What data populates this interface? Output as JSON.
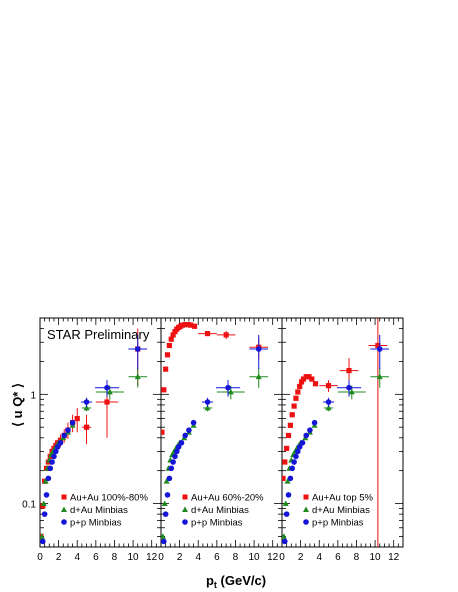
{
  "figure": {
    "prelim_label": "STAR Preliminary",
    "y_axis_label": "⟨ u Q* ⟩",
    "x_axis_label_main": "p",
    "x_axis_label_sub": "t",
    "x_axis_label_rest": " (GeV/c)"
  },
  "colors": {
    "auau": "#ee1111",
    "dau": "#1f8a1f",
    "pp": "#1515d8",
    "axis": "#000000"
  },
  "chart_data": [
    {
      "type": "scatter",
      "panel": "left",
      "xlabel": "p_t (GeV/c)",
      "ylabel": "⟨ u Q* ⟩",
      "xlim": [
        0,
        13
      ],
      "ylim": [
        0.04,
        5
      ],
      "log_y": true,
      "x_ticks": [
        0,
        2,
        4,
        6,
        8,
        10,
        12
      ],
      "y_ticks": [
        {
          "v": 0.1,
          "label": "0.1"
        },
        {
          "v": 1,
          "label": "1"
        }
      ],
      "legend": "bottom-left",
      "series": [
        {
          "name": "Au+Au 100%-80%",
          "key": "auau",
          "marker": "square",
          "points": [
            [
              0.1,
              0.05
            ],
            [
              0.3,
              0.095
            ],
            [
              0.5,
              0.16
            ],
            [
              0.7,
              0.21
            ],
            [
              0.9,
              0.24
            ],
            [
              1.1,
              0.27
            ],
            [
              1.3,
              0.3
            ],
            [
              1.5,
              0.32
            ],
            [
              1.7,
              0.34
            ],
            [
              1.9,
              0.36
            ],
            [
              2.2,
              0.38
            ],
            [
              2.6,
              0.42
            ],
            [
              3.0,
              0.47
            ],
            [
              3.5,
              0.55
            ],
            [
              4.0,
              0.6
            ],
            [
              5.0,
              0.5
            ],
            [
              7.2,
              0.85
            ],
            [
              10.5,
              2.6
            ]
          ],
          "xerr": [
            0,
            0,
            0,
            0,
            0,
            0,
            0,
            0,
            0,
            0,
            0,
            0,
            0,
            0,
            0,
            0.5,
            1.2,
            1
          ],
          "yerr": [
            0,
            0,
            0,
            0,
            0,
            0,
            0,
            0,
            0,
            0,
            0.05,
            0.06,
            0.08,
            0.1,
            0.15,
            0.15,
            0.45,
            1.4
          ]
        },
        {
          "name": "d+Au Minbias",
          "key": "dau",
          "marker": "triangle",
          "points": [
            [
              0.2,
              0.05
            ],
            [
              0.4,
              0.1
            ],
            [
              0.6,
              0.16
            ],
            [
              0.8,
              0.21
            ],
            [
              1.0,
              0.25
            ],
            [
              1.2,
              0.28
            ],
            [
              1.4,
              0.3
            ],
            [
              1.6,
              0.32
            ],
            [
              1.8,
              0.34
            ],
            [
              2.0,
              0.36
            ],
            [
              2.5,
              0.4
            ],
            [
              3.0,
              0.45
            ],
            [
              3.5,
              0.52
            ],
            [
              5.0,
              0.75
            ],
            [
              7.5,
              1.05
            ],
            [
              10.5,
              1.45
            ]
          ],
          "xerr": [
            0,
            0,
            0,
            0,
            0,
            0,
            0,
            0,
            0,
            0,
            0,
            0,
            0,
            0.5,
            1.5,
            1
          ],
          "yerr": [
            0,
            0,
            0,
            0,
            0,
            0,
            0,
            0,
            0,
            0,
            0,
            0,
            0,
            0.05,
            0.15,
            0.3
          ]
        },
        {
          "name": "p+p Minbias",
          "key": "pp",
          "marker": "circle",
          "points": [
            [
              0.3,
              0.045
            ],
            [
              0.5,
              0.08
            ],
            [
              0.7,
              0.12
            ],
            [
              0.9,
              0.17
            ],
            [
              1.1,
              0.21
            ],
            [
              1.3,
              0.24
            ],
            [
              1.5,
              0.27
            ],
            [
              1.7,
              0.3
            ],
            [
              1.9,
              0.33
            ],
            [
              2.2,
              0.36
            ],
            [
              2.6,
              0.42
            ],
            [
              3.0,
              0.47
            ],
            [
              3.5,
              0.55
            ],
            [
              5.0,
              0.85
            ],
            [
              7.2,
              1.15
            ],
            [
              10.5,
              2.6
            ]
          ],
          "xerr": [
            0,
            0,
            0,
            0,
            0,
            0,
            0,
            0,
            0,
            0,
            0,
            0,
            0,
            0.6,
            1.3,
            1
          ],
          "yerr": [
            0,
            0,
            0,
            0,
            0,
            0,
            0,
            0,
            0,
            0,
            0,
            0,
            0,
            0.08,
            0.2,
            0.9
          ]
        }
      ]
    },
    {
      "type": "scatter",
      "panel": "middle",
      "xlabel": "p_t (GeV/c)",
      "ylabel": "⟨ u Q* ⟩",
      "xlim": [
        0,
        13
      ],
      "ylim": [
        0.04,
        5
      ],
      "log_y": true,
      "x_ticks": [
        0,
        2,
        4,
        6,
        8,
        10,
        12
      ],
      "legend": "bottom-left",
      "series": [
        {
          "name": "Au+Au 60%-20%",
          "key": "auau",
          "marker": "square",
          "points": [
            [
              0.1,
              0.45
            ],
            [
              0.3,
              1.1
            ],
            [
              0.5,
              1.7
            ],
            [
              0.7,
              2.3
            ],
            [
              0.9,
              2.8
            ],
            [
              1.1,
              3.2
            ],
            [
              1.3,
              3.5
            ],
            [
              1.5,
              3.75
            ],
            [
              1.7,
              3.95
            ],
            [
              1.9,
              4.1
            ],
            [
              2.1,
              4.2
            ],
            [
              2.3,
              4.3
            ],
            [
              2.6,
              4.35
            ],
            [
              2.9,
              4.35
            ],
            [
              3.2,
              4.3
            ],
            [
              3.6,
              4.2
            ],
            [
              5.0,
              3.6
            ],
            [
              7.0,
              3.5
            ],
            [
              10.5,
              2.7
            ]
          ],
          "xerr": [
            0,
            0,
            0,
            0,
            0,
            0,
            0,
            0,
            0,
            0,
            0,
            0,
            0,
            0,
            0,
            0,
            1,
            1,
            1
          ],
          "yerr": [
            0,
            0,
            0,
            0,
            0,
            0,
            0,
            0,
            0,
            0,
            0,
            0,
            0,
            0,
            0,
            0,
            0,
            0.3,
            0.6
          ]
        },
        {
          "name": "d+Au Minbias",
          "key": "dau",
          "marker": "triangle",
          "points": [
            [
              0.2,
              0.05
            ],
            [
              0.4,
              0.1
            ],
            [
              0.6,
              0.16
            ],
            [
              0.8,
              0.21
            ],
            [
              1.0,
              0.25
            ],
            [
              1.2,
              0.28
            ],
            [
              1.4,
              0.3
            ],
            [
              1.6,
              0.32
            ],
            [
              1.8,
              0.34
            ],
            [
              2.0,
              0.36
            ],
            [
              2.5,
              0.4
            ],
            [
              3.0,
              0.45
            ],
            [
              3.5,
              0.52
            ],
            [
              5.0,
              0.75
            ],
            [
              7.5,
              1.05
            ],
            [
              10.5,
              1.45
            ]
          ],
          "xerr": [
            0,
            0,
            0,
            0,
            0,
            0,
            0,
            0,
            0,
            0,
            0,
            0,
            0,
            0.5,
            1.5,
            1
          ],
          "yerr": [
            0,
            0,
            0,
            0,
            0,
            0,
            0,
            0,
            0,
            0,
            0,
            0,
            0,
            0.05,
            0.15,
            0.3
          ]
        },
        {
          "name": "p+p Minbias",
          "key": "pp",
          "marker": "circle",
          "points": [
            [
              0.3,
              0.045
            ],
            [
              0.5,
              0.08
            ],
            [
              0.7,
              0.12
            ],
            [
              0.9,
              0.17
            ],
            [
              1.1,
              0.21
            ],
            [
              1.3,
              0.24
            ],
            [
              1.5,
              0.27
            ],
            [
              1.7,
              0.3
            ],
            [
              1.9,
              0.33
            ],
            [
              2.2,
              0.36
            ],
            [
              2.6,
              0.42
            ],
            [
              3.0,
              0.47
            ],
            [
              3.5,
              0.55
            ],
            [
              5.0,
              0.85
            ],
            [
              7.2,
              1.15
            ],
            [
              10.5,
              2.6
            ]
          ],
          "xerr": [
            0,
            0,
            0,
            0,
            0,
            0,
            0,
            0,
            0,
            0,
            0,
            0,
            0,
            0.6,
            1.3,
            1
          ],
          "yerr": [
            0,
            0,
            0,
            0,
            0,
            0,
            0,
            0,
            0,
            0,
            0,
            0,
            0,
            0.08,
            0.2,
            0.9
          ]
        }
      ]
    },
    {
      "type": "scatter",
      "panel": "right",
      "xlabel": "p_t (GeV/c)",
      "ylabel": "⟨ u Q* ⟩",
      "xlim": [
        0,
        13
      ],
      "ylim": [
        0.04,
        5
      ],
      "log_y": true,
      "x_ticks": [
        0,
        2,
        4,
        6,
        8,
        10,
        12
      ],
      "legend": "bottom-left",
      "series": [
        {
          "name": "Au+Au top 5%",
          "key": "auau",
          "marker": "square",
          "points": [
            [
              0.1,
              0.17
            ],
            [
              0.3,
              0.24
            ],
            [
              0.5,
              0.32
            ],
            [
              0.7,
              0.42
            ],
            [
              0.9,
              0.52
            ],
            [
              1.1,
              0.65
            ],
            [
              1.3,
              0.78
            ],
            [
              1.5,
              0.92
            ],
            [
              1.7,
              1.05
            ],
            [
              1.9,
              1.18
            ],
            [
              2.1,
              1.3
            ],
            [
              2.3,
              1.38
            ],
            [
              2.6,
              1.45
            ],
            [
              2.9,
              1.45
            ],
            [
              3.2,
              1.38
            ],
            [
              3.6,
              1.25
            ],
            [
              5.0,
              1.2
            ],
            [
              7.2,
              1.65
            ],
            [
              10.3,
              2.8
            ]
          ],
          "xerr": [
            0,
            0,
            0,
            0,
            0,
            0,
            0,
            0,
            0,
            0,
            0,
            0,
            0,
            0,
            0,
            0,
            1,
            1,
            1
          ],
          "yerr": [
            0,
            0,
            0,
            0,
            0,
            0,
            0,
            0,
            0,
            0,
            0,
            0,
            0,
            0,
            0,
            0,
            0.15,
            0.5,
            3
          ]
        },
        {
          "name": "d+Au Minbias",
          "key": "dau",
          "marker": "triangle",
          "points": [
            [
              0.2,
              0.05
            ],
            [
              0.4,
              0.1
            ],
            [
              0.6,
              0.16
            ],
            [
              0.8,
              0.21
            ],
            [
              1.0,
              0.25
            ],
            [
              1.2,
              0.28
            ],
            [
              1.4,
              0.3
            ],
            [
              1.6,
              0.32
            ],
            [
              1.8,
              0.34
            ],
            [
              2.0,
              0.36
            ],
            [
              2.5,
              0.4
            ],
            [
              3.0,
              0.45
            ],
            [
              3.5,
              0.52
            ],
            [
              5.0,
              0.75
            ],
            [
              7.5,
              1.05
            ],
            [
              10.5,
              1.45
            ]
          ],
          "xerr": [
            0,
            0,
            0,
            0,
            0,
            0,
            0,
            0,
            0,
            0,
            0,
            0,
            0,
            0.5,
            1.5,
            1
          ],
          "yerr": [
            0,
            0,
            0,
            0,
            0,
            0,
            0,
            0,
            0,
            0,
            0,
            0,
            0,
            0.05,
            0.15,
            0.3
          ]
        },
        {
          "name": "p+p Minbias",
          "key": "pp",
          "marker": "circle",
          "points": [
            [
              0.3,
              0.045
            ],
            [
              0.5,
              0.08
            ],
            [
              0.7,
              0.12
            ],
            [
              0.9,
              0.17
            ],
            [
              1.1,
              0.21
            ],
            [
              1.3,
              0.24
            ],
            [
              1.5,
              0.27
            ],
            [
              1.7,
              0.3
            ],
            [
              1.9,
              0.33
            ],
            [
              2.2,
              0.36
            ],
            [
              2.6,
              0.42
            ],
            [
              3.0,
              0.47
            ],
            [
              3.5,
              0.55
            ],
            [
              5.0,
              0.85
            ],
            [
              7.2,
              1.15
            ],
            [
              10.5,
              2.6
            ]
          ],
          "xerr": [
            0,
            0,
            0,
            0,
            0,
            0,
            0,
            0,
            0,
            0,
            0,
            0,
            0,
            0.6,
            1.3,
            1
          ],
          "yerr": [
            0,
            0,
            0,
            0,
            0,
            0,
            0,
            0,
            0,
            0,
            0,
            0,
            0,
            0.08,
            0.2,
            0.9
          ]
        }
      ]
    }
  ]
}
